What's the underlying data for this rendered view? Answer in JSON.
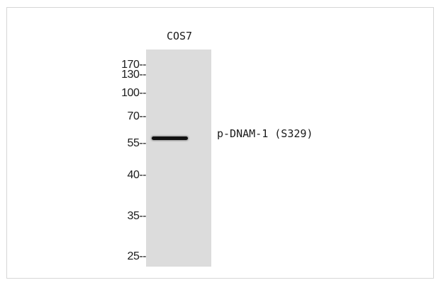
{
  "lane_label": "COS7",
  "target_label": "p-DNAM-1 (S329)",
  "markers": [
    {
      "label": "170--"
    },
    {
      "label": "130--"
    },
    {
      "label": "100--"
    },
    {
      "label": "70--"
    },
    {
      "label": "55--"
    },
    {
      "label": "40--"
    },
    {
      "label": "35--"
    },
    {
      "label": "25--"
    }
  ],
  "colors": {
    "membrane": "#dcdcdc",
    "band": "#111111",
    "text": "#1a1a1a"
  }
}
